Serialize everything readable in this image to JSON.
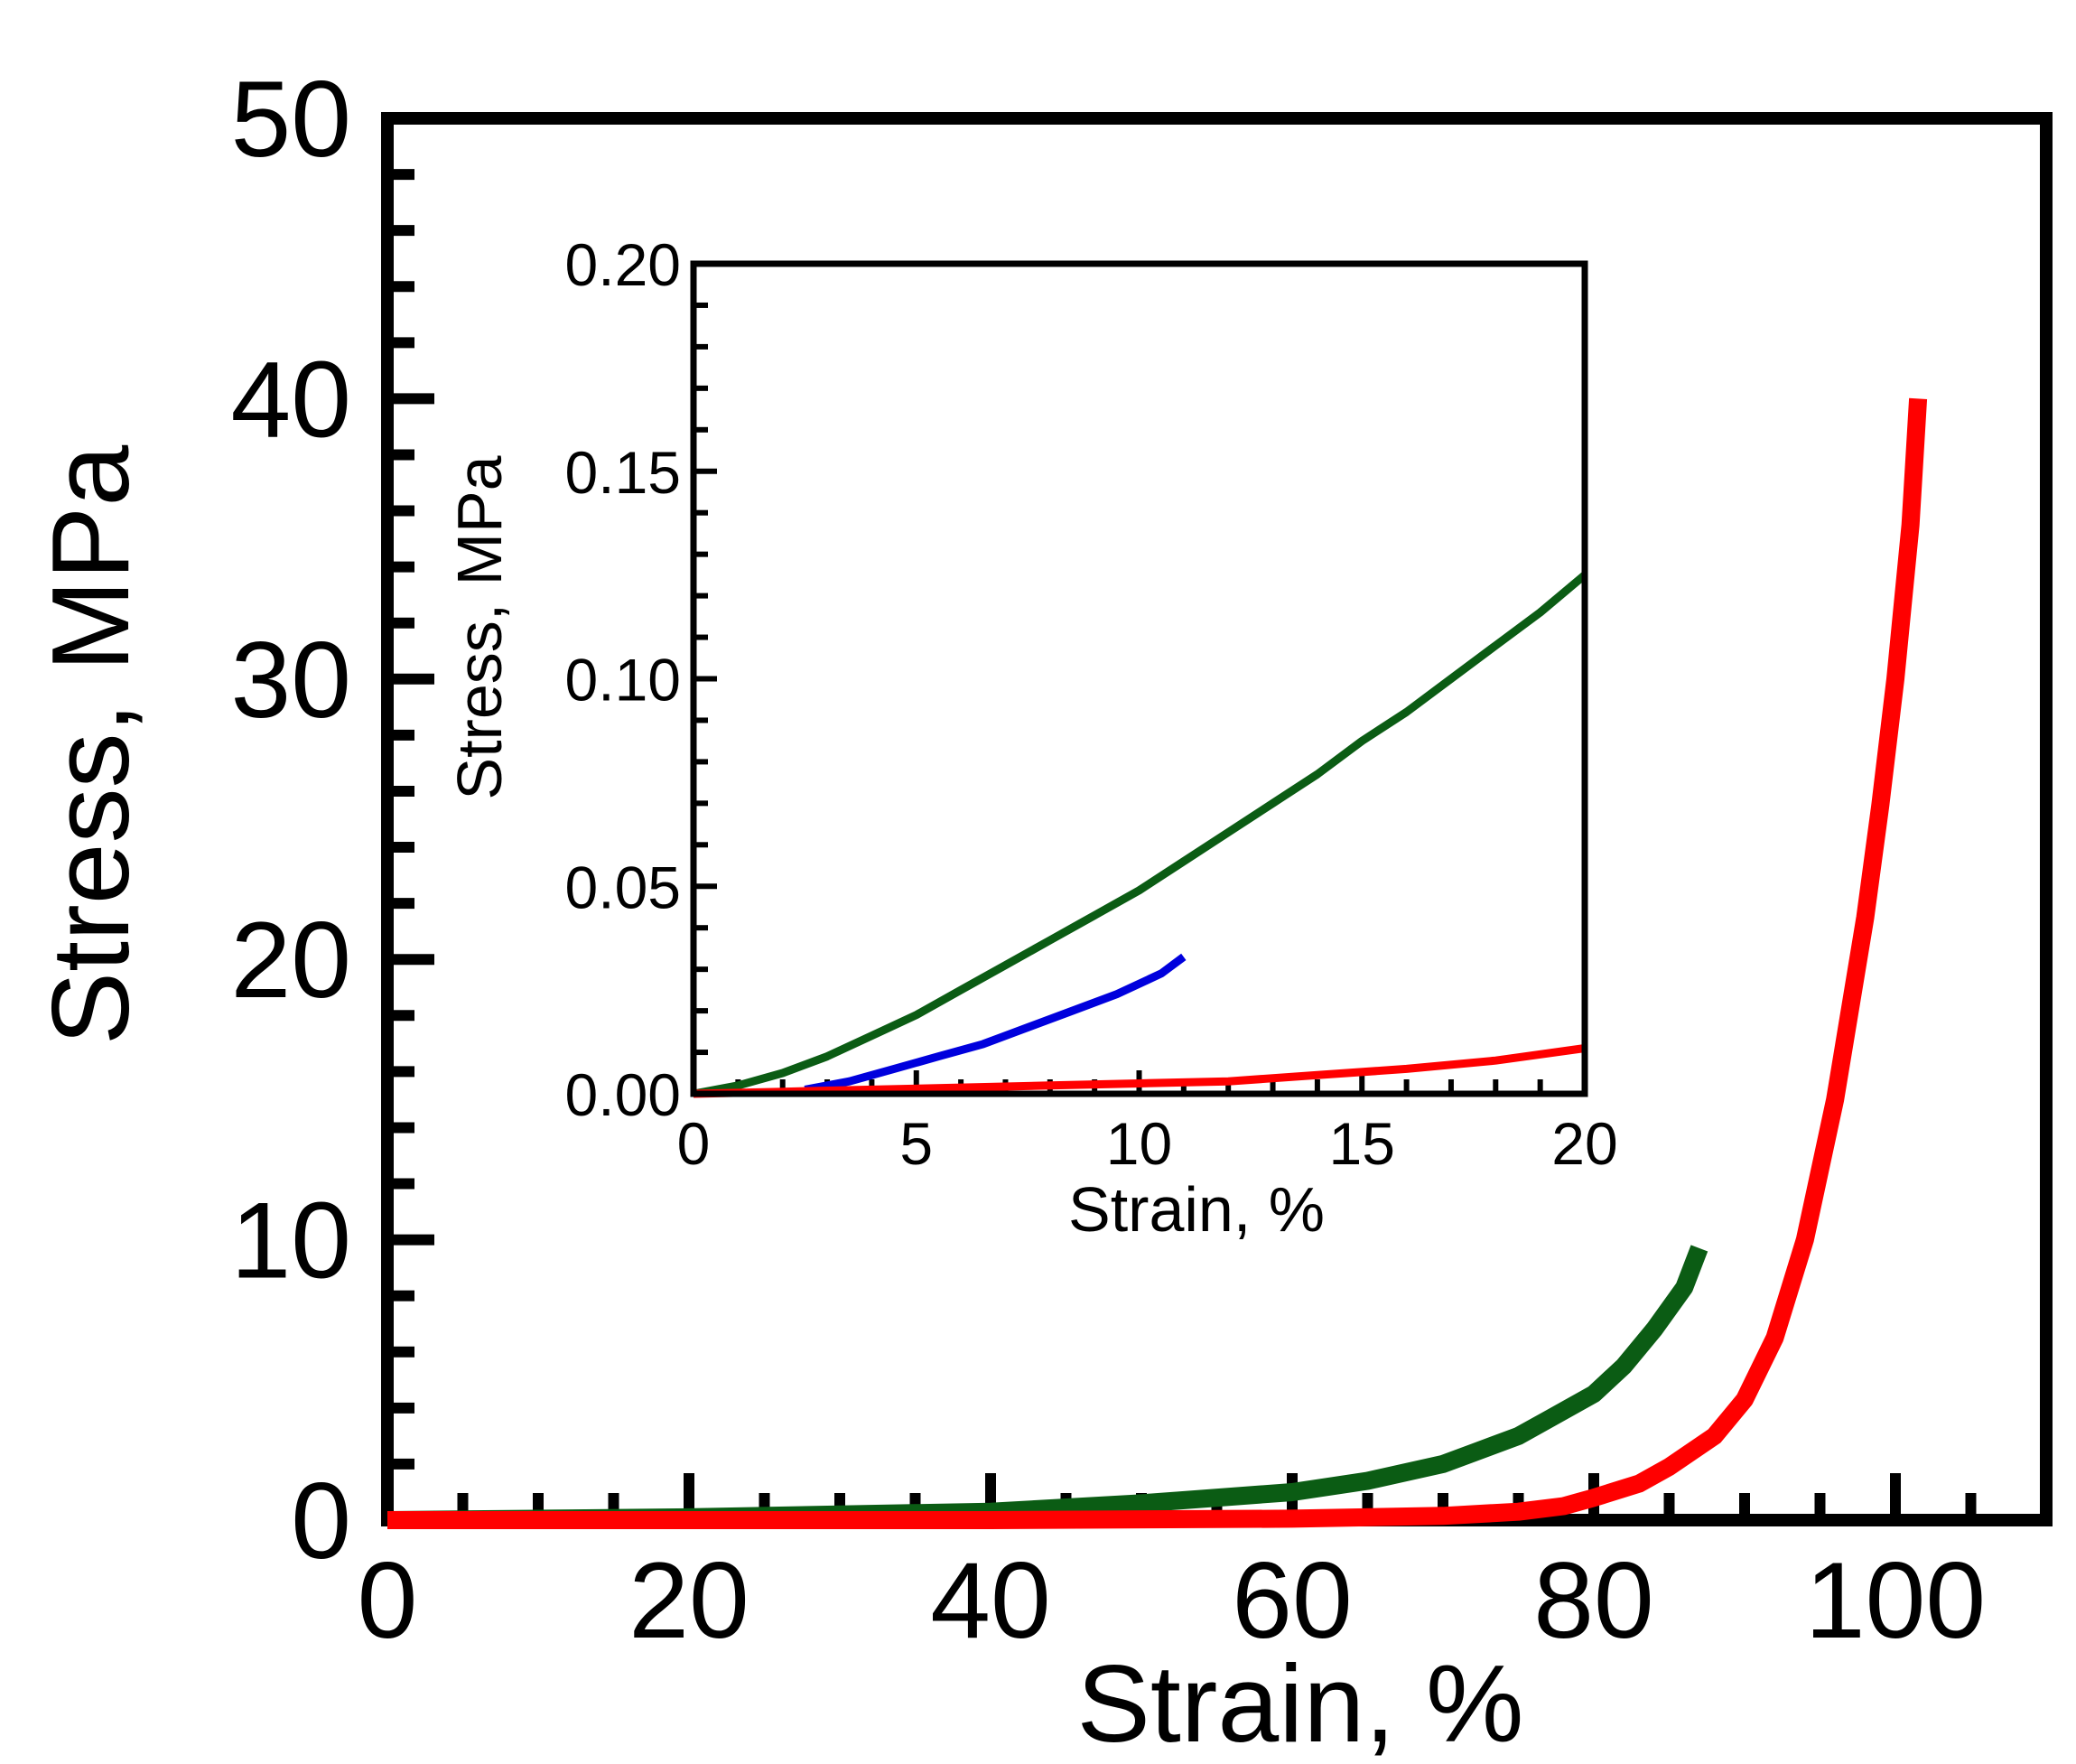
{
  "chart_data": [
    {
      "id": "main",
      "type": "line",
      "title": "",
      "xlabel": "Strain, %",
      "ylabel": "Stress, MPa",
      "xlim": [
        0,
        110
      ],
      "ylim": [
        0,
        50
      ],
      "x_ticks": [
        0,
        20,
        40,
        60,
        80,
        100
      ],
      "x_tick_labels": [
        "0",
        "20",
        "40",
        "60",
        "80",
        "100"
      ],
      "x_minor_step": 5,
      "y_ticks": [
        0,
        10,
        20,
        30,
        40,
        50
      ],
      "y_tick_labels": [
        "0",
        "10",
        "20",
        "30",
        "40",
        "50"
      ],
      "y_minor_step": 2,
      "grid": false,
      "legend": "none",
      "series": [
        {
          "name": "green",
          "color": "#0b5c14",
          "x": [
            0,
            20,
            40,
            50,
            60,
            65,
            70,
            72,
            75,
            77,
            80,
            82,
            84,
            86,
            87
          ],
          "y": [
            0,
            0.1,
            0.3,
            0.6,
            1.0,
            1.4,
            2.0,
            2.4,
            3.0,
            3.6,
            4.5,
            5.5,
            6.8,
            8.3,
            9.7
          ]
        },
        {
          "name": "red",
          "color": "#ff0000",
          "x": [
            0,
            20,
            40,
            60,
            70,
            75,
            78,
            80,
            83,
            85,
            88,
            90,
            92,
            94,
            96,
            98,
            99,
            100,
            101,
            101.5
          ],
          "y": [
            0,
            0,
            0,
            0.05,
            0.15,
            0.3,
            0.5,
            0.8,
            1.3,
            1.9,
            3.0,
            4.3,
            6.5,
            10.0,
            15.0,
            21.5,
            25.5,
            30.0,
            35.5,
            40.0
          ]
        }
      ]
    },
    {
      "id": "inset",
      "type": "line",
      "title": "",
      "xlabel": "Strain, %",
      "ylabel": "Stress, MPa",
      "xlim": [
        0,
        20
      ],
      "ylim": [
        0,
        0.2
      ],
      "x_ticks": [
        0,
        5,
        10,
        15,
        20
      ],
      "x_tick_labels": [
        "0",
        "5",
        "10",
        "15",
        "20"
      ],
      "x_minor_step": 1,
      "y_ticks": [
        0,
        0.05,
        0.1,
        0.15,
        0.2
      ],
      "y_tick_labels": [
        "0.00",
        "0.05",
        "0.10",
        "0.15",
        "0.20"
      ],
      "y_minor_step": 0.01,
      "grid": false,
      "legend": "none",
      "series": [
        {
          "name": "green",
          "color": "#0b5c14",
          "x": [
            0,
            1,
            2,
            3,
            4,
            5,
            6,
            7,
            8,
            9,
            10,
            11,
            12,
            13,
            14,
            15,
            16,
            17,
            18,
            19,
            20
          ],
          "y": [
            0.0,
            0.002,
            0.005,
            0.009,
            0.014,
            0.019,
            0.025,
            0.031,
            0.037,
            0.043,
            0.049,
            0.056,
            0.063,
            0.07,
            0.077,
            0.085,
            0.092,
            0.1,
            0.108,
            0.116,
            0.125
          ]
        },
        {
          "name": "blue",
          "color": "#0000dd",
          "x": [
            2.5,
            3.5,
            4.5,
            5.5,
            6.5,
            7.5,
            8.5,
            9.5,
            10.5,
            11
          ],
          "y": [
            0.001,
            0.003,
            0.006,
            0.009,
            0.012,
            0.016,
            0.02,
            0.024,
            0.029,
            0.033
          ]
        },
        {
          "name": "red",
          "color": "#ff0000",
          "x": [
            0,
            2,
            4,
            6,
            8,
            10,
            12,
            14,
            16,
            18,
            20
          ],
          "y": [
            0.0,
            0.0005,
            0.001,
            0.0015,
            0.002,
            0.0025,
            0.003,
            0.0045,
            0.006,
            0.008,
            0.011
          ]
        }
      ]
    }
  ]
}
